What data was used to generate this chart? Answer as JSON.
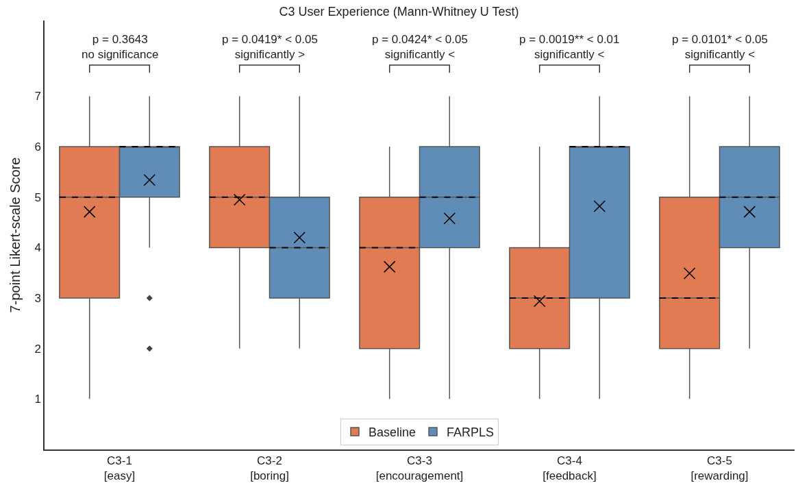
{
  "chart_data": {
    "type": "box",
    "title": "C3 User Experience (Mann-Whitney U Test)",
    "ylabel": "7-point Likert-scale Score",
    "categories": [
      "C3-1\n[easy]",
      "C3-2\n[boring]",
      "C3-3\n[encouragement]",
      "C3-4\n[feedback]",
      "C3-5\n[rewarding]"
    ],
    "series": [
      {
        "name": "Baseline",
        "color": "#e07b54",
        "boxes": [
          {
            "low": 1,
            "q1": 3,
            "median": 5,
            "q3": 6,
            "high": 7,
            "mean": 4.71
          },
          {
            "low": 2,
            "q1": 4,
            "median": 5,
            "q3": 6,
            "high": 7,
            "mean": 4.95
          },
          {
            "low": 1,
            "q1": 2,
            "median": 4,
            "q3": 5,
            "high": 6,
            "mean": 3.62
          },
          {
            "low": 1,
            "q1": 2,
            "median": 3,
            "q3": 4,
            "high": 6,
            "mean": 2.94
          },
          {
            "low": 1,
            "q1": 2,
            "median": 3,
            "q3": 5,
            "high": 7,
            "mean": 3.49
          }
        ]
      },
      {
        "name": "FARPLS",
        "color": "#5f8db8",
        "boxes": [
          {
            "low": 4,
            "q1": 5,
            "median": 6,
            "q3": 6,
            "high": 7,
            "mean": 5.34,
            "outliers": [
              3,
              2
            ]
          },
          {
            "low": 2,
            "q1": 3,
            "median": 4,
            "q3": 5,
            "high": 7,
            "mean": 4.2
          },
          {
            "low": 1,
            "q1": 4,
            "median": 5,
            "q3": 6,
            "high": 7,
            "mean": 4.58
          },
          {
            "low": 1,
            "q1": 3,
            "median": 6,
            "q3": 6,
            "high": 7,
            "mean": 4.82
          },
          {
            "low": 2,
            "q1": 4,
            "median": 5,
            "q3": 6,
            "high": 7,
            "mean": 4.71
          }
        ]
      }
    ],
    "ylim": [
      0,
      8.5
    ],
    "yticks": [
      1,
      2,
      3,
      4,
      5,
      6,
      7
    ],
    "legend": "bottom",
    "annotations": [
      "p = 0.3643\nno significance",
      "p = 0.0419* < 0.05\nsignificantly >",
      "p = 0.0424* < 0.05\nsignificantly <",
      "p = 0.0019** < 0.01\nsignificantly <",
      "p = 0.0101* < 0.05\nsignificantly <"
    ]
  }
}
